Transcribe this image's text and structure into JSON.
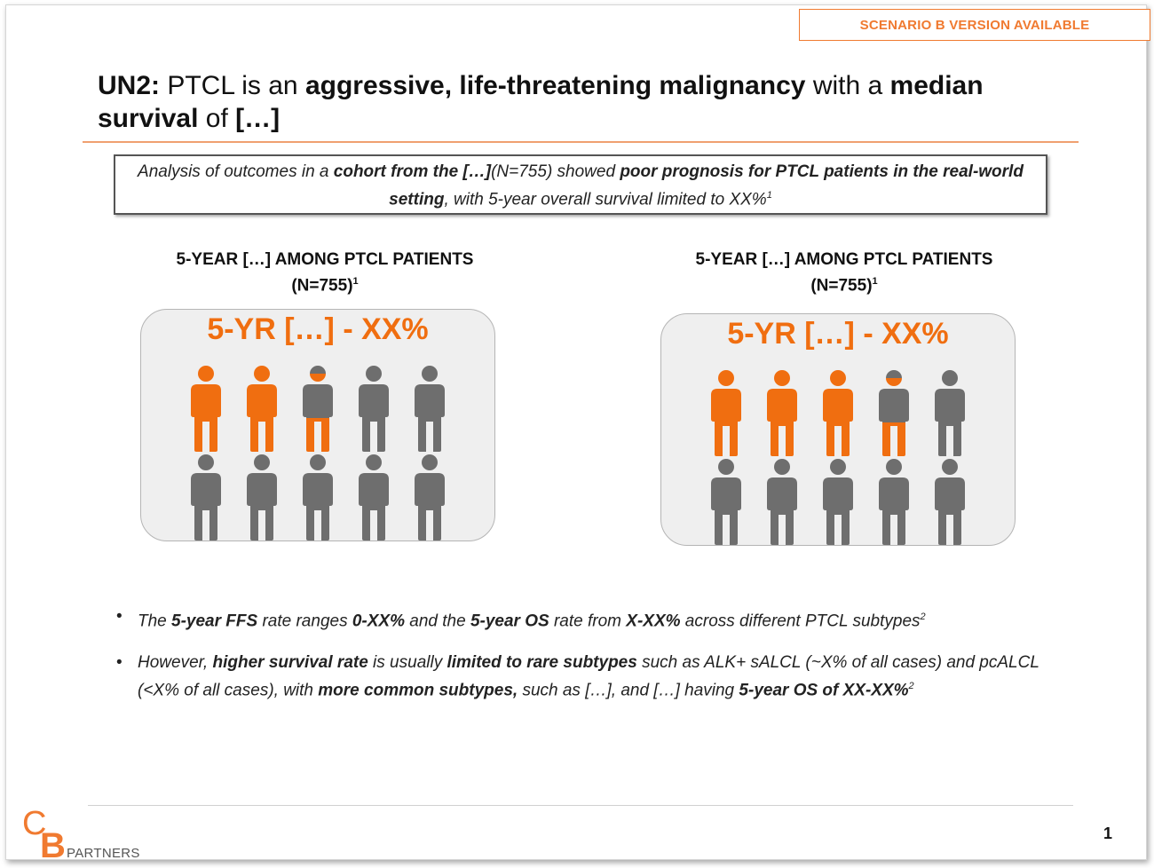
{
  "scenario_badge": "SCENARIO B VERSION AVAILABLE",
  "title": {
    "segments": [
      {
        "text": "UN2: ",
        "bold": true
      },
      {
        "text": "PTCL is an ",
        "bold": false
      },
      {
        "text": "aggressive, life-threatening malignancy",
        "bold": true
      },
      {
        "text": " with a ",
        "bold": false
      },
      {
        "text": "median survival",
        "bold": true
      },
      {
        "text": " of ",
        "bold": false
      },
      {
        "text": "[…]",
        "bold": true
      }
    ]
  },
  "callout": {
    "segments": [
      {
        "text": "Analysis of outcomes in a ",
        "bold": false
      },
      {
        "text": "cohort from the […]",
        "bold": true
      },
      {
        "text": "(N=755) showed ",
        "bold": false
      },
      {
        "text": "poor prognosis for PTCL patients in the real-world setting",
        "bold": true
      },
      {
        "text": ", with 5-year overall survival limited to XX%",
        "bold": false
      },
      {
        "text": "1",
        "sup": true
      }
    ]
  },
  "panels": [
    {
      "heading_line1": "5-YEAR […] AMONG PTCL PATIENTS",
      "heading_line2": "(N=755)",
      "heading_sup": "1",
      "percent_label": "5-YR […] - XX%",
      "fill_fractions": [
        1,
        1,
        0.5,
        0,
        0,
        0,
        0,
        0,
        0,
        0
      ]
    },
    {
      "heading_line1": "5-YEAR […] AMONG PTCL PATIENTS",
      "heading_line2": "(N=755)",
      "heading_sup": "1",
      "percent_label": "5-YR […] - XX%",
      "fill_fractions": [
        1,
        1,
        1,
        0.5,
        0,
        0,
        0,
        0,
        0,
        0
      ]
    }
  ],
  "bullets": [
    {
      "segments": [
        {
          "text": "The ",
          "bold": false
        },
        {
          "text": "5-year FFS",
          "bold": true
        },
        {
          "text": " rate ranges ",
          "bold": false
        },
        {
          "text": "0-XX%",
          "bold": true
        },
        {
          "text": " and the ",
          "bold": false
        },
        {
          "text": "5-year OS",
          "bold": true
        },
        {
          "text": " rate from ",
          "bold": false
        },
        {
          "text": "X-XX%",
          "bold": true
        },
        {
          "text": " across different PTCL subtypes",
          "bold": false
        },
        {
          "text": "2",
          "sup": true
        }
      ]
    },
    {
      "segments": [
        {
          "text": "However, ",
          "bold": false
        },
        {
          "text": "higher survival rate",
          "bold": true
        },
        {
          "text": " is usually ",
          "bold": false
        },
        {
          "text": "limited to rare subtypes",
          "bold": true
        },
        {
          "text": " such as ALK+ sALCL (~X% of all cases) and pcALCL (<X% of all cases), with ",
          "bold": false
        },
        {
          "text": "more common subtypes,",
          "bold": true
        },
        {
          "text": " such as […], and […] having ",
          "bold": false
        },
        {
          "text": "5-year OS of XX-XX%",
          "bold": true
        },
        {
          "text": "2",
          "sup": true
        }
      ]
    }
  ],
  "bullet_glyph": "•",
  "logo": {
    "letter_c": "C",
    "letter_b": "B",
    "wordmark": "PARTNERS"
  },
  "page_number": "1",
  "colors": {
    "accent": "#f06e10",
    "person_gray": "#6e6e6e",
    "badge": "#f07a30"
  }
}
